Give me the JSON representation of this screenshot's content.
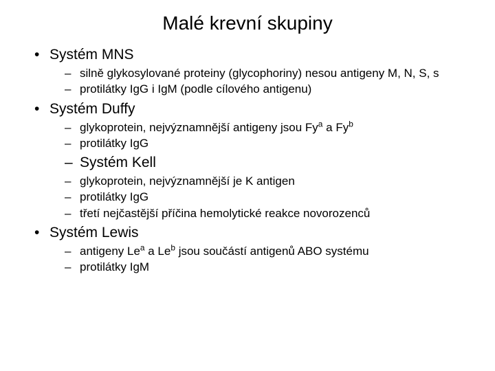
{
  "title": "Malé krevní skupiny",
  "sections": {
    "mns": {
      "heading": "Systém MNS",
      "items": [
        "silně glykosylované proteiny (glycophoriny) nesou antigeny M, N, S, s",
        "protilátky IgG i IgM (podle cílového antigenu)"
      ]
    },
    "duffy": {
      "heading": "Systém Duffy",
      "item1_pre": "glykoprotein, nejvýznamnější antigeny jsou Fy",
      "item1_sup1": "a",
      "item1_mid": " a Fy",
      "item1_sup2": "b",
      "item2": "protilátky IgG"
    },
    "kell": {
      "heading": "Systém Kell",
      "items": [
        "glykoprotein, nejvýznamnější je K antigen",
        "protilátky IgG",
        "třetí nejčastější příčina hemolytické reakce novorozenců"
      ]
    },
    "lewis": {
      "heading": "Systém Lewis",
      "item1_pre": "antigeny Le",
      "item1_sup1": "a",
      "item1_mid": " a Le",
      "item1_sup2": "b",
      "item1_post": " jsou součástí antigenů ABO systému",
      "item2": "protilátky IgM"
    }
  },
  "style": {
    "background_color": "#ffffff",
    "text_color": "#000000",
    "title_fontsize": 28,
    "bullet1_fontsize": 21,
    "bullet2_fontsize": 17,
    "font_family": "Arial"
  }
}
